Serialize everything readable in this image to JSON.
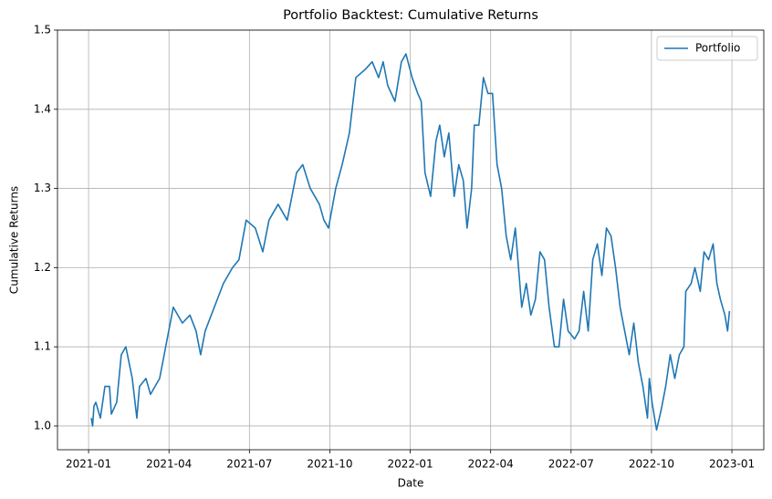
{
  "chart_data": {
    "type": "line",
    "title": "Portfolio Backtest: Cumulative Returns",
    "x_label": "Date",
    "y_label": "Cumulative Returns",
    "xlim": [
      -1.16,
      25.19
    ],
    "ylim": [
      0.97,
      1.5
    ],
    "xticks": [
      {
        "value": 0,
        "label": "2021-01"
      },
      {
        "value": 3,
        "label": "2021-04"
      },
      {
        "value": 6,
        "label": "2021-07"
      },
      {
        "value": 9,
        "label": "2021-10"
      },
      {
        "value": 12,
        "label": "2022-01"
      },
      {
        "value": 15,
        "label": "2022-04"
      },
      {
        "value": 18,
        "label": "2022-07"
      },
      {
        "value": 21,
        "label": "2022-10"
      },
      {
        "value": 24,
        "label": "2023-01"
      }
    ],
    "yticks": [
      {
        "value": 1,
        "label": "1.0"
      },
      1.1,
      1.2,
      1.3,
      1.4,
      1.5
    ],
    "grid": true,
    "legend_position": "upper-right",
    "x": [
      0.1,
      0.15,
      0.2,
      0.27,
      0.44,
      0.61,
      0.78,
      0.85,
      1.05,
      1.22,
      1.39,
      1.63,
      1.8,
      1.9,
      2.14,
      2.31,
      2.65,
      2.82,
      3.16,
      3.5,
      3.78,
      4.01,
      4.18,
      4.35,
      4.69,
      5.03,
      5.37,
      5.61,
      5.88,
      6.22,
      6.5,
      6.73,
      7.07,
      7.41,
      7.76,
      7.99,
      8.27,
      8.61,
      8.78,
      8.95,
      9.22,
      9.46,
      9.73,
      9.97,
      10.31,
      10.58,
      10.82,
      10.99,
      11.16,
      11.43,
      11.67,
      11.84,
      12.07,
      12.28,
      12.41,
      12.55,
      12.76,
      12.96,
      13.1,
      13.27,
      13.44,
      13.64,
      13.81,
      13.98,
      14.12,
      14.29,
      14.39,
      14.56,
      14.73,
      14.9,
      15.07,
      15.24,
      15.41,
      15.58,
      15.75,
      15.92,
      16.16,
      16.33,
      16.5,
      16.67,
      16.84,
      17.01,
      17.18,
      17.38,
      17.55,
      17.72,
      17.89,
      18.13,
      18.3,
      18.47,
      18.64,
      18.81,
      18.98,
      19.15,
      19.32,
      19.49,
      19.66,
      19.83,
      20.0,
      20.17,
      20.34,
      20.51,
      20.68,
      20.85,
      20.92,
      21.02,
      21.19,
      21.36,
      21.53,
      21.7,
      21.87,
      22.04,
      22.21,
      22.28,
      22.48,
      22.62,
      22.82,
      22.96,
      23.13,
      23.3,
      23.44,
      23.57,
      23.74,
      23.84,
      23.91
    ],
    "series": [
      {
        "name": "Portfolio",
        "color": "#1f77b4",
        "values": [
          1.01,
          1.0,
          1.025,
          1.03,
          1.01,
          1.05,
          1.05,
          1.015,
          1.03,
          1.09,
          1.1,
          1.06,
          1.01,
          1.05,
          1.06,
          1.04,
          1.06,
          1.09,
          1.15,
          1.13,
          1.14,
          1.12,
          1.09,
          1.12,
          1.15,
          1.18,
          1.2,
          1.21,
          1.26,
          1.25,
          1.22,
          1.26,
          1.28,
          1.26,
          1.32,
          1.33,
          1.3,
          1.28,
          1.26,
          1.25,
          1.3,
          1.33,
          1.37,
          1.44,
          1.45,
          1.46,
          1.44,
          1.46,
          1.43,
          1.41,
          1.46,
          1.47,
          1.44,
          1.42,
          1.41,
          1.32,
          1.29,
          1.36,
          1.38,
          1.34,
          1.37,
          1.29,
          1.33,
          1.31,
          1.25,
          1.3,
          1.38,
          1.38,
          1.44,
          1.42,
          1.42,
          1.33,
          1.3,
          1.24,
          1.21,
          1.25,
          1.15,
          1.18,
          1.14,
          1.16,
          1.22,
          1.21,
          1.15,
          1.1,
          1.1,
          1.16,
          1.12,
          1.11,
          1.12,
          1.17,
          1.12,
          1.21,
          1.23,
          1.19,
          1.25,
          1.24,
          1.2,
          1.15,
          1.12,
          1.09,
          1.13,
          1.08,
          1.05,
          1.01,
          1.06,
          1.03,
          0.995,
          1.02,
          1.05,
          1.09,
          1.06,
          1.09,
          1.1,
          1.17,
          1.18,
          1.2,
          1.17,
          1.22,
          1.21,
          1.23,
          1.18,
          1.16,
          1.14,
          1.12,
          1.145
        ]
      }
    ]
  }
}
